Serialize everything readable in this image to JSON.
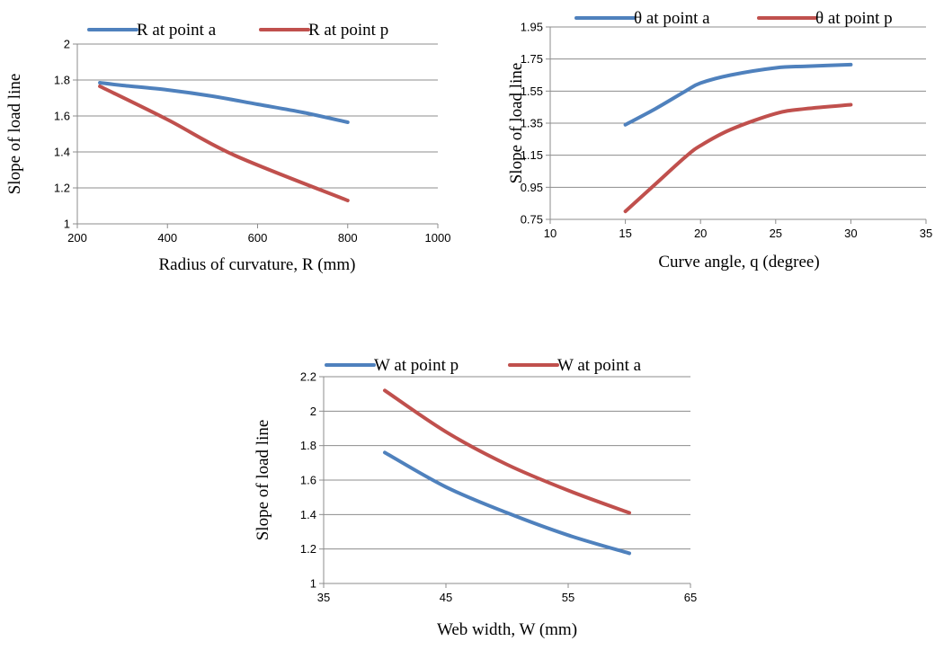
{
  "chart_data": [
    {
      "type": "line",
      "xlabel": "Radius of curvature, R (mm)",
      "ylabel": "Slope of load line",
      "xlim": [
        200,
        1000
      ],
      "ylim": [
        1,
        2
      ],
      "xticks": [
        "200",
        "400",
        "600",
        "800",
        "1000"
      ],
      "yticks": [
        "1",
        "1.2",
        "1.4",
        "1.6",
        "1.8",
        "2"
      ],
      "legend": "top",
      "grid": "horizontal",
      "series": [
        {
          "name": "R at point a",
          "color": "#4f81bd",
          "x": [
            250,
            300,
            400,
            500,
            600,
            700,
            800
          ],
          "y": [
            1.785,
            1.77,
            1.745,
            1.71,
            1.665,
            1.62,
            1.565
          ]
        },
        {
          "name": "R at point p",
          "color": "#c0504d",
          "x": [
            250,
            400,
            550,
            800
          ],
          "y": [
            1.765,
            1.58,
            1.38,
            1.13
          ]
        }
      ]
    },
    {
      "type": "line",
      "xlabel": "Curve angle, q (degree)",
      "ylabel": "Slope of load line",
      "xlim": [
        10,
        35
      ],
      "ylim": [
        0.75,
        1.95
      ],
      "xticks": [
        "10",
        "15",
        "20",
        "25",
        "30",
        "35"
      ],
      "yticks": [
        "0.75",
        "0.95",
        "1.15",
        "1.35",
        "1.55",
        "1.75",
        "1.95"
      ],
      "legend": "top",
      "grid": "horizontal",
      "series": [
        {
          "name": "θ at point a",
          "color": "#4f81bd",
          "x": [
            15,
            17,
            19,
            20,
            22,
            25,
            27,
            30
          ],
          "y": [
            1.34,
            1.44,
            1.55,
            1.6,
            1.65,
            1.695,
            1.705,
            1.715
          ]
        },
        {
          "name": "θ at point p",
          "color": "#c0504d",
          "x": [
            15,
            17,
            19,
            20,
            22,
            25,
            27,
            30
          ],
          "y": [
            0.8,
            0.97,
            1.14,
            1.21,
            1.31,
            1.41,
            1.44,
            1.465
          ]
        }
      ]
    },
    {
      "type": "line",
      "xlabel": "Web width, W (mm)",
      "ylabel": "Slope of load line",
      "xlim": [
        35,
        65
      ],
      "ylim": [
        1,
        2.2
      ],
      "xticks": [
        "35",
        "45",
        "55",
        "65"
      ],
      "yticks": [
        "1",
        "1.2",
        "1.4",
        "1.6",
        "1.8",
        "2",
        "2.2"
      ],
      "legend": "top",
      "grid": "horizontal",
      "series": [
        {
          "name": "W at point p",
          "color": "#4f81bd",
          "x": [
            40,
            45,
            50,
            55,
            60
          ],
          "y": [
            1.76,
            1.56,
            1.41,
            1.28,
            1.175
          ]
        },
        {
          "name": "W at point a",
          "color": "#c0504d",
          "x": [
            40,
            45,
            50,
            55,
            60
          ],
          "y": [
            2.12,
            1.88,
            1.69,
            1.54,
            1.41
          ]
        }
      ]
    }
  ]
}
